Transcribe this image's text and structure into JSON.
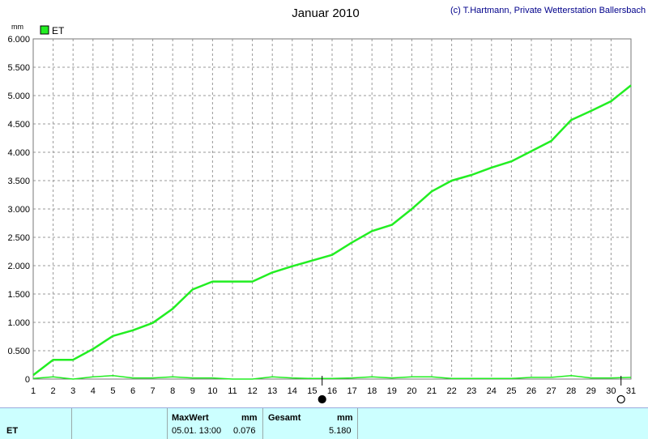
{
  "chart_data": {
    "type": "line",
    "title": "Januar 2010",
    "credit": "(c) T.Hartmann, Private Wetterstation Ballersbach",
    "ylabel": "mm",
    "ylim": [
      0,
      6
    ],
    "yticks": [
      "0",
      "0.500",
      "1.000",
      "1.500",
      "2.000",
      "2.500",
      "3.000",
      "3.500",
      "4.000",
      "4.500",
      "5.000",
      "5.500",
      "6.000"
    ],
    "xlim": [
      1,
      31
    ],
    "xticks": [
      "1",
      "2",
      "3",
      "4",
      "5",
      "6",
      "7",
      "8",
      "9",
      "10",
      "11",
      "12",
      "13",
      "14",
      "15",
      "16",
      "17",
      "18",
      "19",
      "20",
      "21",
      "22",
      "23",
      "24",
      "25",
      "26",
      "27",
      "28",
      "29",
      "30",
      "31"
    ],
    "grid": true,
    "legend": "top-left",
    "series": [
      {
        "name": "ET",
        "color": "#22ee22",
        "x": [
          1,
          2,
          3,
          4,
          5,
          6,
          7,
          8,
          9,
          10,
          11,
          12,
          13,
          14,
          15,
          16,
          17,
          18,
          19,
          20,
          21,
          22,
          23,
          24,
          25,
          26,
          27,
          28,
          29,
          30,
          31
        ],
        "values": [
          0.07,
          0.34,
          0.34,
          0.53,
          0.76,
          0.86,
          0.99,
          1.24,
          1.58,
          1.72,
          1.72,
          1.72,
          1.88,
          1.99,
          2.09,
          2.19,
          2.41,
          2.61,
          2.72,
          3.0,
          3.31,
          3.5,
          3.6,
          3.73,
          3.84,
          4.02,
          4.2,
          4.57,
          4.73,
          4.9,
          5.18
        ]
      },
      {
        "name": "",
        "color": "#22ee22",
        "x": [
          1,
          2,
          3,
          4,
          5,
          6,
          7,
          8,
          9,
          10,
          11,
          12,
          13,
          14,
          15,
          16,
          17,
          18,
          19,
          20,
          21,
          22,
          23,
          24,
          25,
          26,
          27,
          28,
          29,
          30,
          31
        ],
        "values": [
          0.01,
          0.04,
          0.0,
          0.04,
          0.06,
          0.02,
          0.02,
          0.04,
          0.02,
          0.02,
          0.0,
          0.0,
          0.04,
          0.02,
          0.01,
          0.01,
          0.02,
          0.04,
          0.02,
          0.04,
          0.04,
          0.01,
          0.01,
          0.01,
          0.01,
          0.03,
          0.03,
          0.06,
          0.02,
          0.02,
          0.03
        ]
      }
    ],
    "moon_markers": [
      {
        "x": 15.5,
        "phase": "full"
      },
      {
        "x": 30.5,
        "phase": "new"
      }
    ]
  },
  "footer": {
    "series_label": "ET",
    "max_header": "MaxWert",
    "max_unit": "mm",
    "max_datetime": "05.01.  13:00",
    "max_value": "0.076",
    "total_header": "Gesamt",
    "total_unit": "mm",
    "total_value": "5.180"
  }
}
